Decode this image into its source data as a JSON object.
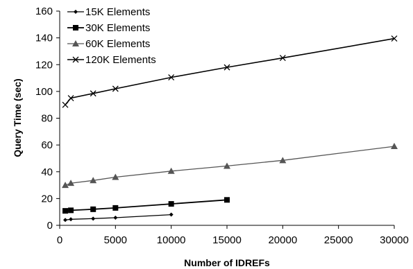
{
  "chart_data": {
    "type": "line",
    "xlabel": "Number of IDREFs",
    "ylabel": "Query Time (sec)",
    "xlim": [
      0,
      30000
    ],
    "ylim": [
      0,
      160
    ],
    "xticks": [
      "0",
      "5000",
      "10000",
      "15000",
      "20000",
      "25000",
      "30000"
    ],
    "yticks": [
      "0",
      "20",
      "40",
      "60",
      "80",
      "100",
      "120",
      "140",
      "160"
    ],
    "grid": false,
    "legend_position": "top-left",
    "series": [
      {
        "name": "15K Elements",
        "marker": "diamond",
        "color": "#000000",
        "x": [
          500,
          1000,
          3000,
          5000,
          10000
        ],
        "y": [
          4,
          4.5,
          5,
          5.7,
          8
        ]
      },
      {
        "name": "30K Elements",
        "marker": "square",
        "color": "#000000",
        "x": [
          500,
          1000,
          3000,
          5000,
          10000,
          15000
        ],
        "y": [
          10.8,
          11.2,
          12,
          13,
          16,
          19
        ]
      },
      {
        "name": "60K Elements",
        "marker": "triangle",
        "color": "#555555",
        "x": [
          500,
          1000,
          3000,
          5000,
          10000,
          15000,
          20000,
          30000
        ],
        "y": [
          30,
          31.5,
          33.5,
          36,
          40.5,
          44.3,
          48.5,
          59
        ]
      },
      {
        "name": "120K Elements",
        "marker": "x",
        "color": "#000000",
        "x": [
          500,
          1000,
          3000,
          5000,
          10000,
          15000,
          20000,
          30000
        ],
        "y": [
          90,
          95,
          98.5,
          102,
          110.5,
          118,
          125,
          139.5
        ]
      }
    ]
  }
}
